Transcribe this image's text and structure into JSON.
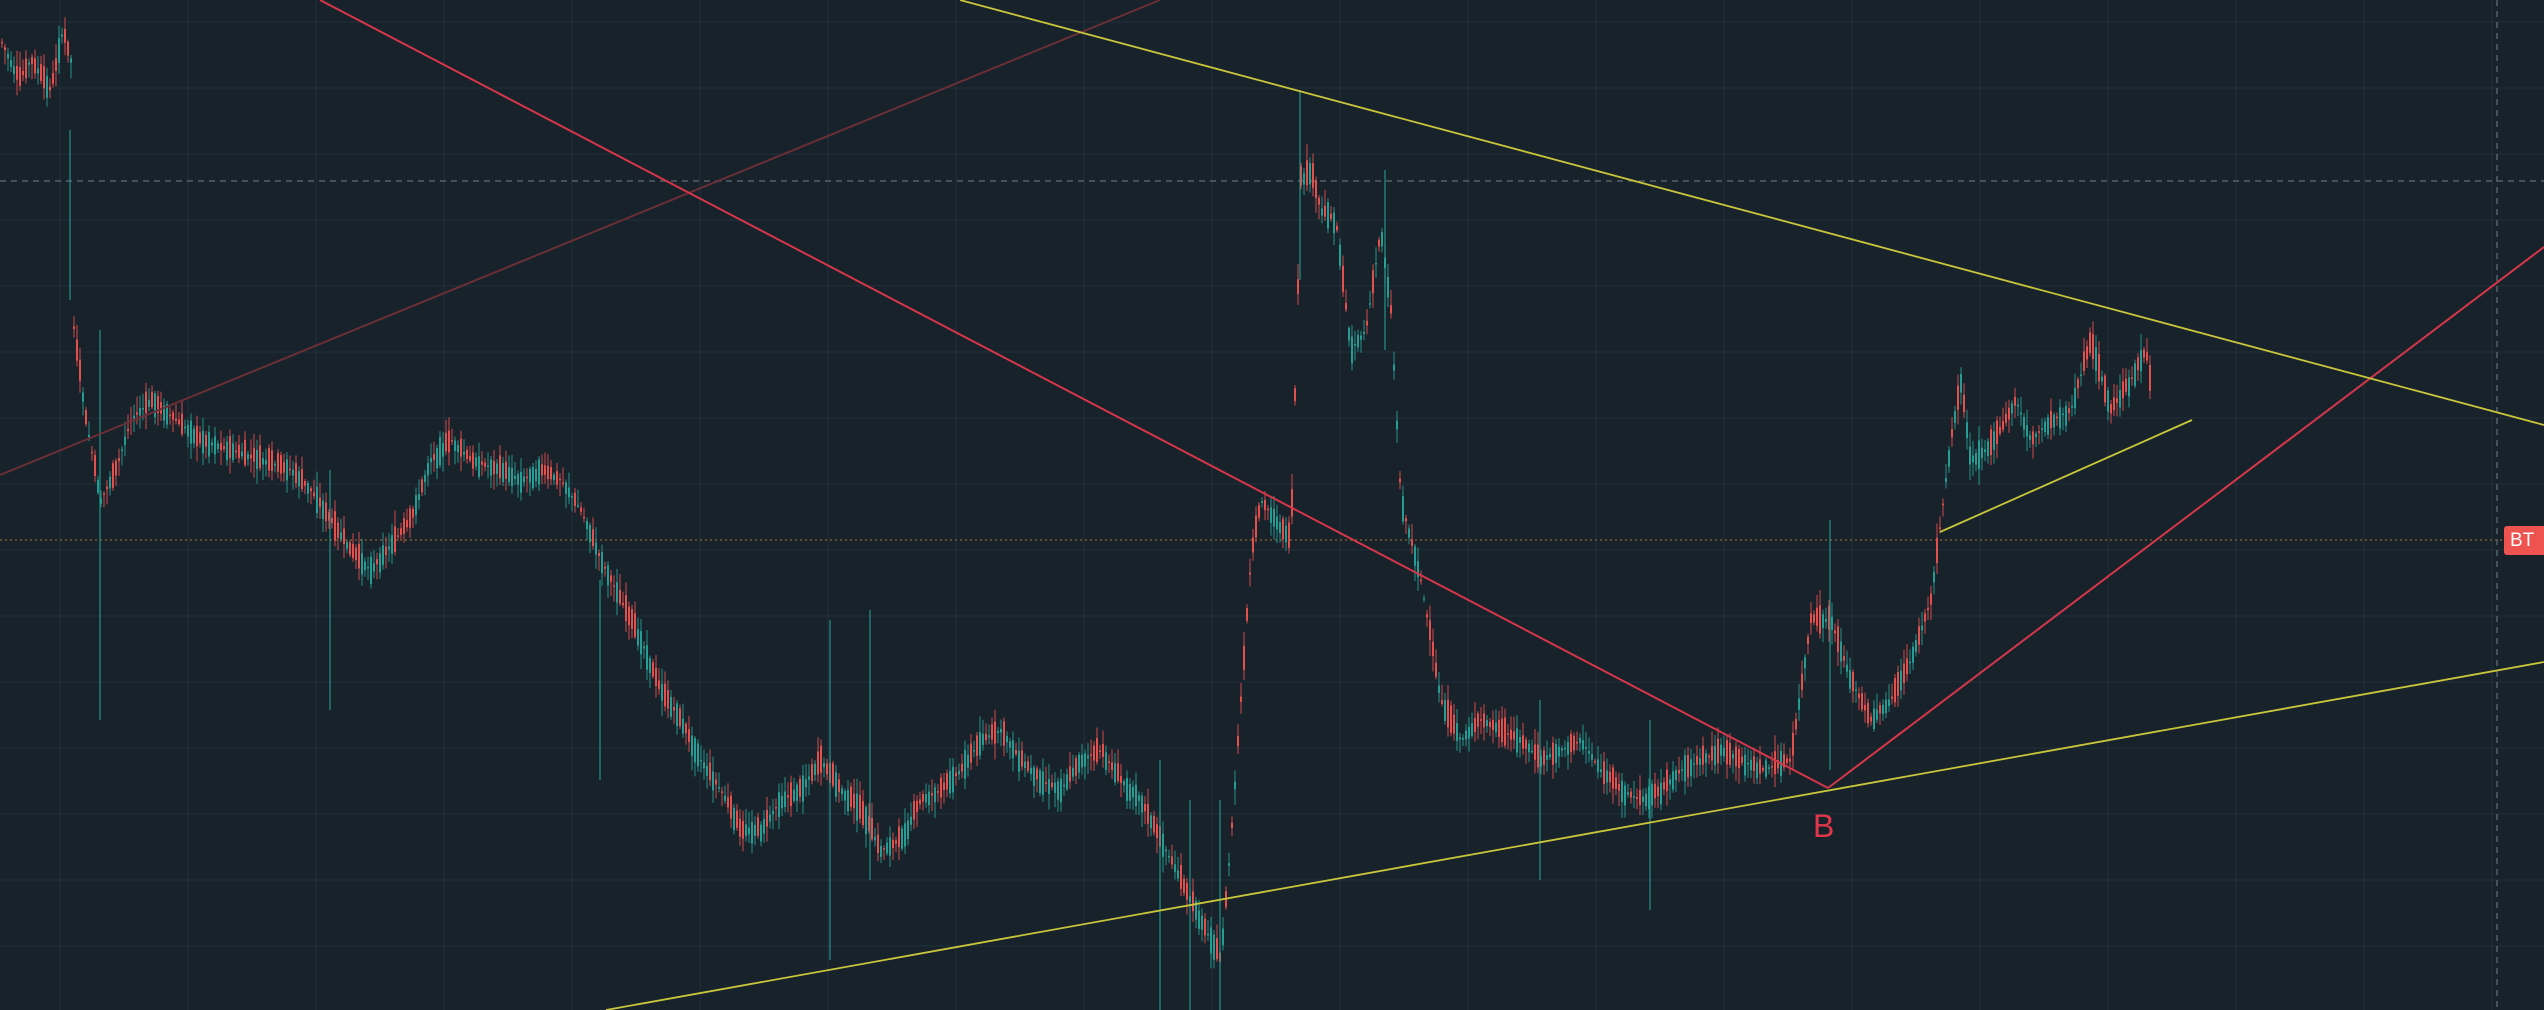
{
  "chart_data": {
    "type": "candlestick",
    "grid": true,
    "colors": {
      "background": "#18222a",
      "grid": "#22303a",
      "up": "#26a69a",
      "down": "#ef5350",
      "trendline_red": "#d6364a",
      "trendline_yellow": "#c9c63c",
      "trendline_faint": "#6a2e36",
      "crosshair": "#55606a",
      "price_line": "#7a5a2a"
    },
    "price_label": "BT",
    "markers": [
      {
        "label": "B"
      }
    ],
    "trendlines": [
      "red-descending",
      "red-ascending",
      "yellow-upper-resistance",
      "yellow-lower-support",
      "yellow-short-channel",
      "faint-red-ascending"
    ]
  }
}
